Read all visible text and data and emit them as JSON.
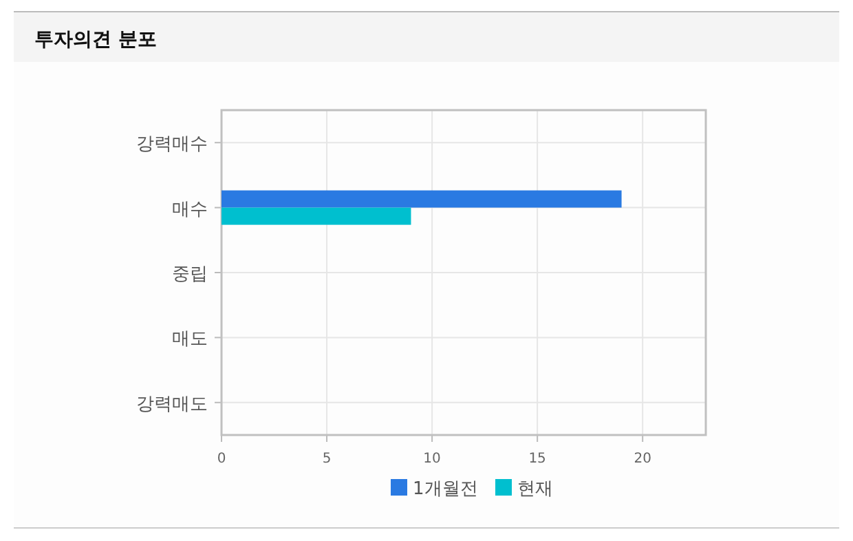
{
  "chart_data": {
    "type": "bar",
    "orientation": "horizontal",
    "title": "투자의견 분포",
    "categories": [
      "강력매수",
      "매수",
      "중립",
      "매도",
      "강력매도"
    ],
    "series": [
      {
        "name": "1개월전",
        "color": "#2a7ae2",
        "values": [
          0,
          19,
          0,
          0,
          0
        ]
      },
      {
        "name": "현재",
        "color": "#00bfcf",
        "values": [
          0,
          9,
          0,
          0,
          0
        ]
      }
    ],
    "xlim": [
      0,
      23
    ],
    "xticks": [
      0,
      5,
      10,
      15,
      20
    ],
    "grid": true,
    "legend": "bottom"
  }
}
